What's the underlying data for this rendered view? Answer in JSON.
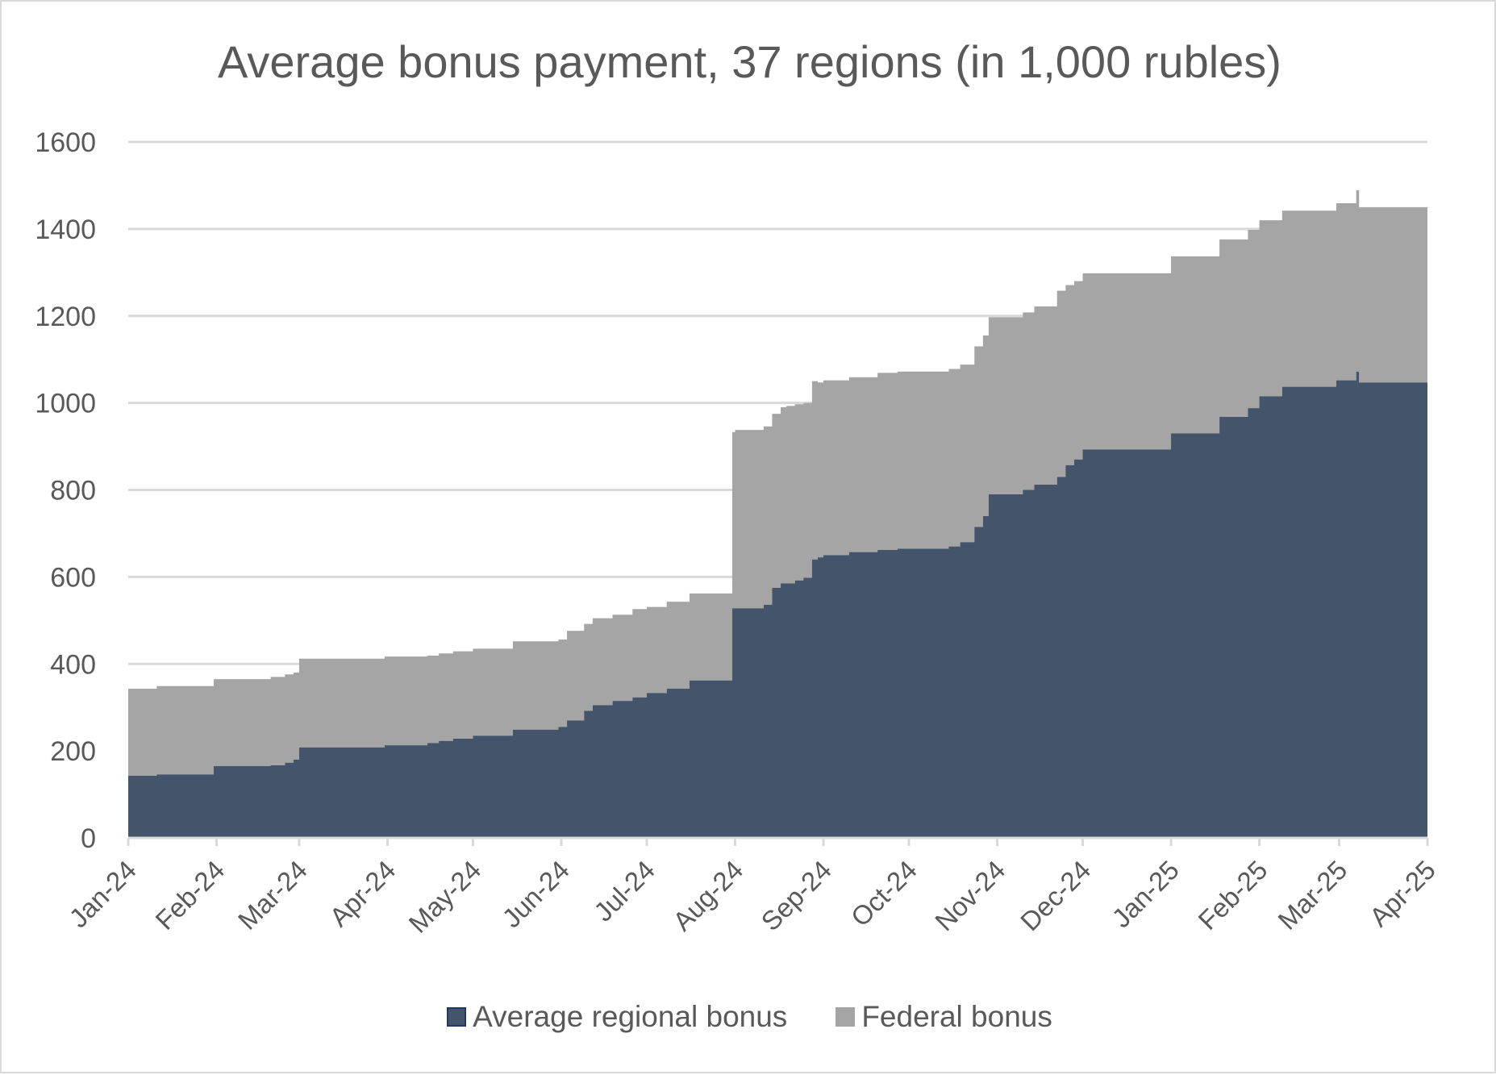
{
  "chart_data": {
    "type": "area",
    "stacked": true,
    "step": true,
    "title": "Average bonus payment, 37 regions (in 1,000 rubles)",
    "xlabel": "",
    "ylabel": "",
    "ylim": [
      0,
      1600
    ],
    "yticks": [
      0,
      200,
      400,
      600,
      800,
      1000,
      1200,
      1400,
      1600
    ],
    "xtick_labels": [
      "Jan-24",
      "Feb-24",
      "Mar-24",
      "Apr-24",
      "May-24",
      "Jun-24",
      "Jul-24",
      "Aug-24",
      "Sep-24",
      "Oct-24",
      "Nov-24",
      "Dec-24",
      "Jan-25",
      "Feb-25",
      "Mar-25",
      "Apr-25"
    ],
    "grid": "horizontal",
    "legend_position": "bottom",
    "colors": {
      "regional": "#44546a",
      "federal": "#a5a5a5",
      "grid": "#d9d9d9",
      "text": "#595959"
    },
    "x": [
      "2024-01-01",
      "2024-01-11",
      "2024-01-20",
      "2024-01-31",
      "2024-02-10",
      "2024-02-20",
      "2024-02-25",
      "2024-02-28",
      "2024-03-01",
      "2024-03-10",
      "2024-03-31",
      "2024-04-15",
      "2024-04-19",
      "2024-04-24",
      "2024-05-01",
      "2024-05-15",
      "2024-05-31",
      "2024-06-03",
      "2024-06-09",
      "2024-06-12",
      "2024-06-19",
      "2024-06-26",
      "2024-07-01",
      "2024-07-08",
      "2024-07-16",
      "2024-07-26",
      "2024-07-31",
      "2024-08-01",
      "2024-08-11",
      "2024-08-14",
      "2024-08-17",
      "2024-08-19",
      "2024-08-22",
      "2024-08-25",
      "2024-08-28",
      "2024-08-30",
      "2024-09-01",
      "2024-09-10",
      "2024-09-20",
      "2024-09-27",
      "2024-10-01",
      "2024-10-15",
      "2024-10-19",
      "2024-10-24",
      "2024-10-27",
      "2024-10-29",
      "2024-10-31",
      "2024-11-01",
      "2024-11-10",
      "2024-11-14",
      "2024-11-18",
      "2024-11-22",
      "2024-11-25",
      "2024-11-28",
      "2024-12-01",
      "2024-12-31",
      "2025-01-01",
      "2025-01-14",
      "2025-01-18",
      "2025-01-28",
      "2025-02-01",
      "2025-02-09",
      "2025-02-28",
      "2025-03-06",
      "2025-03-07",
      "2025-03-08",
      "2025-03-31"
    ],
    "series": [
      {
        "name": "Average regional bonus",
        "values": [
          143,
          146,
          146,
          165,
          165,
          167,
          173,
          180,
          208,
          208,
          213,
          218,
          223,
          228,
          235,
          249,
          255,
          270,
          292,
          305,
          315,
          323,
          333,
          343,
          362,
          362,
          528,
          528,
          536,
          575,
          585,
          585,
          592,
          598,
          640,
          645,
          650,
          657,
          662,
          665,
          665,
          670,
          680,
          715,
          740,
          790,
          790,
          790,
          800,
          812,
          812,
          830,
          857,
          870,
          893,
          893,
          930,
          930,
          968,
          988,
          1015,
          1037,
          1052,
          1052,
          1072,
          1047,
          1047
        ]
      },
      {
        "name": "Federal bonus",
        "values": [
          200,
          203,
          203,
          200,
          200,
          203,
          203,
          200,
          204,
          204,
          204,
          201,
          201,
          201,
          200,
          203,
          201,
          206,
          200,
          200,
          198,
          203,
          198,
          200,
          200,
          200,
          405,
          410,
          410,
          400,
          405,
          408,
          405,
          402,
          410,
          402,
          402,
          402,
          407,
          407,
          407,
          408,
          408,
          415,
          415,
          407,
          407,
          407,
          408,
          410,
          410,
          428,
          414,
          410,
          405,
          405,
          407,
          407,
          408,
          410,
          405,
          405,
          407,
          407,
          417,
          403,
          403
        ]
      }
    ]
  }
}
